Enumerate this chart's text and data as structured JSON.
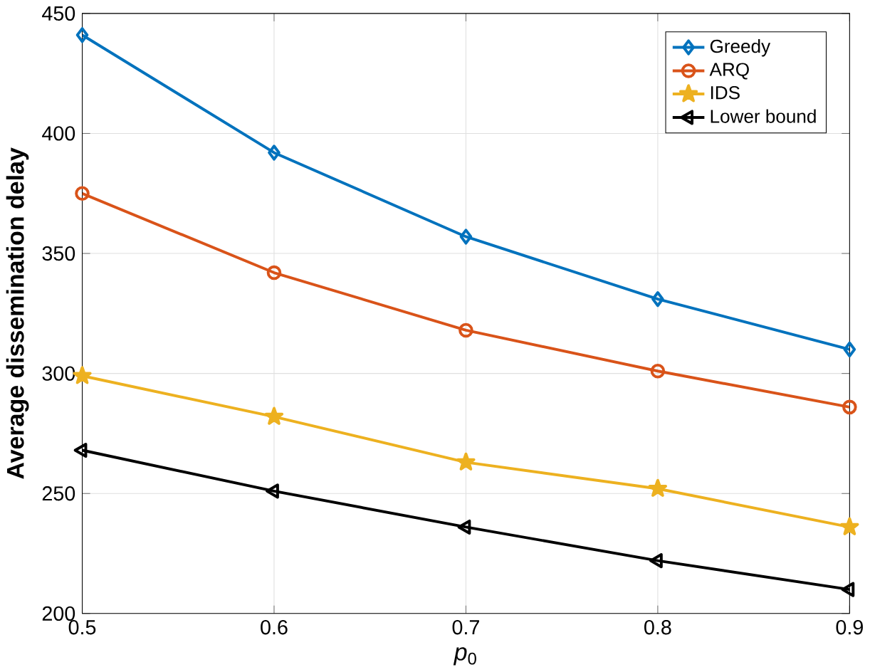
{
  "chart_data": {
    "type": "line",
    "xlabel": "*p*$_{0}$",
    "ylabel": "Average dissemination delay",
    "x": [
      0.5,
      0.6,
      0.7,
      0.8,
      0.9
    ],
    "series": [
      {
        "name": "Greedy",
        "color": "#0072bd",
        "marker": "diamond",
        "values": [
          441,
          392,
          357,
          331,
          310
        ]
      },
      {
        "name": "ARQ",
        "color": "#d95319",
        "marker": "circle",
        "values": [
          375,
          342,
          318,
          301,
          286
        ]
      },
      {
        "name": "IDS",
        "color": "#edb120",
        "marker": "star",
        "values": [
          299,
          282,
          263,
          252,
          236
        ]
      },
      {
        "name": "Lower bound",
        "color": "#000000",
        "marker": "triangle",
        "values": [
          268,
          251,
          236,
          222,
          210
        ]
      }
    ],
    "xlim": [
      0.5,
      0.9
    ],
    "ylim": [
      200,
      450
    ],
    "xticks": [
      {
        "value": 0.5,
        "label": "0.5"
      },
      {
        "value": 0.6,
        "label": "0.6"
      },
      {
        "value": 0.7,
        "label": "0.7"
      },
      {
        "value": 0.8,
        "label": "0.8"
      },
      {
        "value": 0.9,
        "label": "0.9"
      }
    ],
    "yticks": [
      200,
      250,
      300,
      350,
      400,
      450
    ],
    "grid": true,
    "legend": "top right",
    "line_style": "solid"
  }
}
